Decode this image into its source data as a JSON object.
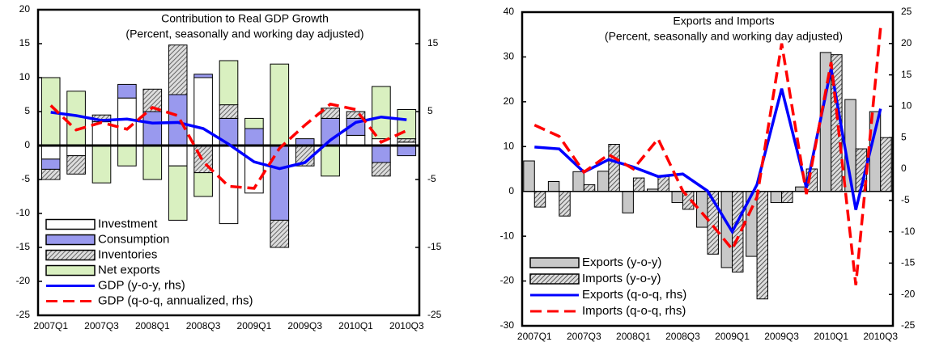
{
  "chart_data": [
    {
      "type": "bar",
      "stacked": true,
      "legend": "lower left",
      "title": "Contribution to Real GDP Growth",
      "subtitle": "(Percent, seasonally and working day adjusted)",
      "categories": [
        "2007Q1",
        null,
        "2007Q3",
        null,
        "2008Q1",
        null,
        "2008Q3",
        null,
        "2009Q1",
        null,
        "2009Q3",
        null,
        "2010Q1",
        null,
        "2010Q3"
      ],
      "ylim": [
        -25,
        20
      ],
      "yticks": [
        -25,
        -20,
        -15,
        -10,
        -5,
        0,
        5,
        10,
        15,
        20
      ],
      "y2lim": [
        -25,
        20
      ],
      "y2ticks": [
        -25,
        -15,
        -5,
        5,
        15
      ],
      "series": [
        {
          "name": "Investment",
          "color": "#ffffff",
          "values": [
            -2,
            -1.5,
            3.5,
            7,
            0,
            -3,
            10,
            -11.5,
            -7,
            0,
            0,
            0,
            1.5,
            1,
            0.5
          ]
        },
        {
          "name": "Consumption",
          "color": "#9999ee",
          "values": [
            -1.5,
            0,
            0,
            2,
            5,
            7.5,
            0.5,
            4,
            2.5,
            -11,
            1,
            4,
            2.5,
            -2.5,
            -1.5
          ]
        },
        {
          "name": "Inventories",
          "color": "#666666",
          "pattern": "hatch",
          "values": [
            -1.5,
            -2.7,
            1,
            0,
            3.3,
            7.3,
            -4,
            2,
            0,
            -4,
            -3,
            1.5,
            1,
            -2,
            0.5
          ]
        },
        {
          "name": "Net exports",
          "color": "#d9f0c0",
          "values": [
            10,
            8,
            -5.5,
            -3,
            -5,
            -8,
            -3.5,
            6.5,
            1.5,
            12,
            0,
            -4.5,
            0,
            7.7,
            4.3
          ]
        },
        {
          "name": "GDP (y-o-y, rhs)",
          "type": "line",
          "axis": "y2",
          "color": "#0000ff",
          "values": [
            4.9,
            4.4,
            3.7,
            3.9,
            3.3,
            3.4,
            2.5,
            0.2,
            -2.4,
            -3.4,
            -2.5,
            0.8,
            3.4,
            4.2,
            3.8
          ]
        },
        {
          "name": "GDP (q-o-q, annualized, rhs)",
          "type": "line",
          "axis": "y2",
          "dash": true,
          "color": "#ff0000",
          "values": [
            5.9,
            2.3,
            3.4,
            2.4,
            5.6,
            4.4,
            -2.4,
            -6,
            -6.3,
            -0.4,
            3,
            6.1,
            5.3,
            0.5,
            2.2
          ]
        }
      ]
    },
    {
      "type": "bar",
      "stacked": false,
      "legend": "lower left",
      "title": "Exports and Imports",
      "subtitle": "(Percent, seasonally and working day adjusted)",
      "categories": [
        "2007Q1",
        null,
        "2007Q3",
        null,
        "2008Q1",
        null,
        "2008Q3",
        null,
        "2009Q1",
        null,
        "2009Q3",
        null,
        "2010Q1",
        null,
        "2010Q3"
      ],
      "ylim": [
        -30,
        40
      ],
      "yticks": [
        -30,
        -20,
        -10,
        0,
        10,
        20,
        30,
        40
      ],
      "y2lim": [
        -25,
        25
      ],
      "y2ticks": [
        -25,
        -20,
        -15,
        -10,
        -5,
        0,
        5,
        10,
        15,
        20,
        25
      ],
      "series": [
        {
          "name": "Exports (y-o-y)",
          "color": "#c8c8c8",
          "values": [
            6.8,
            2.2,
            4.4,
            4.5,
            -4.8,
            0.5,
            -2.5,
            -8,
            -17,
            -14.5,
            -2.5,
            1,
            31,
            20.5,
            17.8
          ]
        },
        {
          "name": "Imports (y-o-y)",
          "color": "#555555",
          "pattern": "hatch",
          "values": [
            -3.5,
            -5.5,
            1.5,
            10.5,
            3,
            3.3,
            -4,
            -14,
            -18,
            -24,
            -2.5,
            5,
            30.5,
            9.5,
            12
          ]
        },
        {
          "name": "Exports (q-o-q, rhs)",
          "type": "line",
          "axis": "y2",
          "color": "#0000ff",
          "values": [
            3.5,
            3.2,
            -0.5,
            1.5,
            0.3,
            -1.2,
            -0.8,
            -3.5,
            -10,
            -2.5,
            12.8,
            -3,
            16,
            -6.5,
            9.6
          ]
        },
        {
          "name": "Imports (q-o-q, rhs)",
          "type": "line",
          "axis": "y2",
          "dash": true,
          "color": "#ff0000",
          "values": [
            7,
            5.2,
            -0.5,
            2.3,
            0,
            4.8,
            -3.5,
            -8,
            -12.8,
            -4.5,
            20,
            -4,
            17,
            -18.5,
            22.5
          ]
        }
      ]
    }
  ]
}
